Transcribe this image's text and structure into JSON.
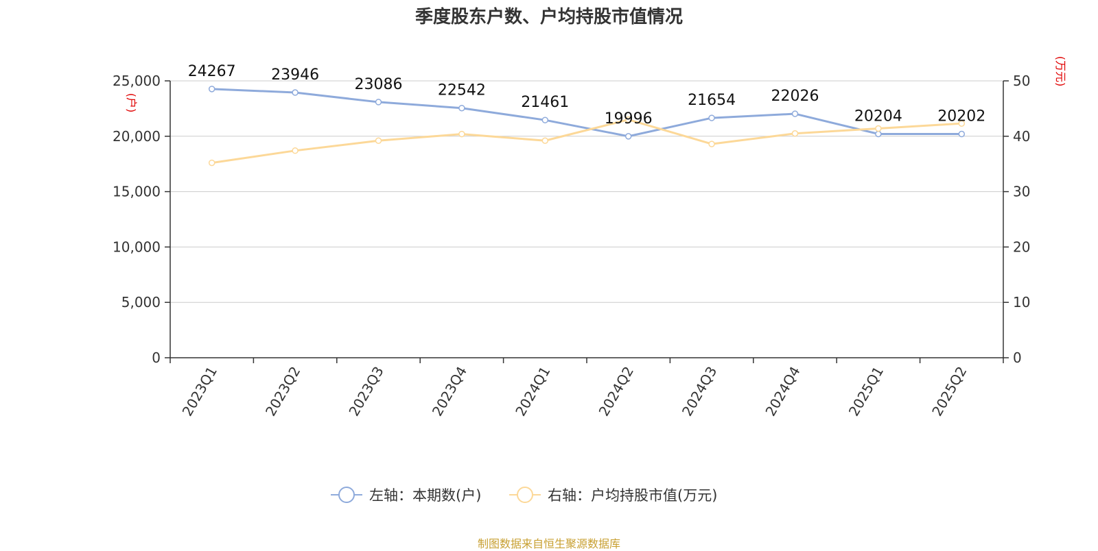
{
  "title": "季度股东户数、户均持股市值情况",
  "source": "制图数据来自恒生聚源数据库",
  "chart_data": {
    "type": "line",
    "categories": [
      "2023Q1",
      "2023Q2",
      "2023Q3",
      "2023Q4",
      "2024Q1",
      "2024Q2",
      "2024Q3",
      "2024Q4",
      "2025Q1",
      "2025Q2"
    ],
    "left_axis": {
      "unit": "(户)",
      "min": 0,
      "max": 25000,
      "ticks": [
        0,
        5000,
        10000,
        15000,
        20000,
        25000
      ],
      "tick_labels": [
        "0",
        "5,000",
        "10,000",
        "15,000",
        "20,000",
        "25,000"
      ]
    },
    "right_axis": {
      "unit": "(万元)",
      "min": 0,
      "max": 50,
      "ticks": [
        0,
        10,
        20,
        30,
        40,
        50
      ],
      "tick_labels": [
        "0",
        "10",
        "20",
        "30",
        "40",
        "50"
      ]
    },
    "grid": true,
    "legend_position": "bottom",
    "series": [
      {
        "name": "左轴：本期数(户)",
        "axis": "left",
        "color": "#8eaadb",
        "values": [
          24267,
          23946,
          23086,
          22542,
          21461,
          19996,
          21654,
          22026,
          20204,
          20202
        ],
        "labels": [
          "24267",
          "23946",
          "23086",
          "22542",
          "21461",
          "19996",
          "21654",
          "22026",
          "20204",
          "20202"
        ]
      },
      {
        "name": "右轴：户均持股市值(万元)",
        "axis": "right",
        "color": "#fcd898",
        "values": [
          35.2,
          37.4,
          39.2,
          40.4,
          39.2,
          43.0,
          38.6,
          40.5,
          41.4,
          42.3
        ]
      }
    ]
  }
}
